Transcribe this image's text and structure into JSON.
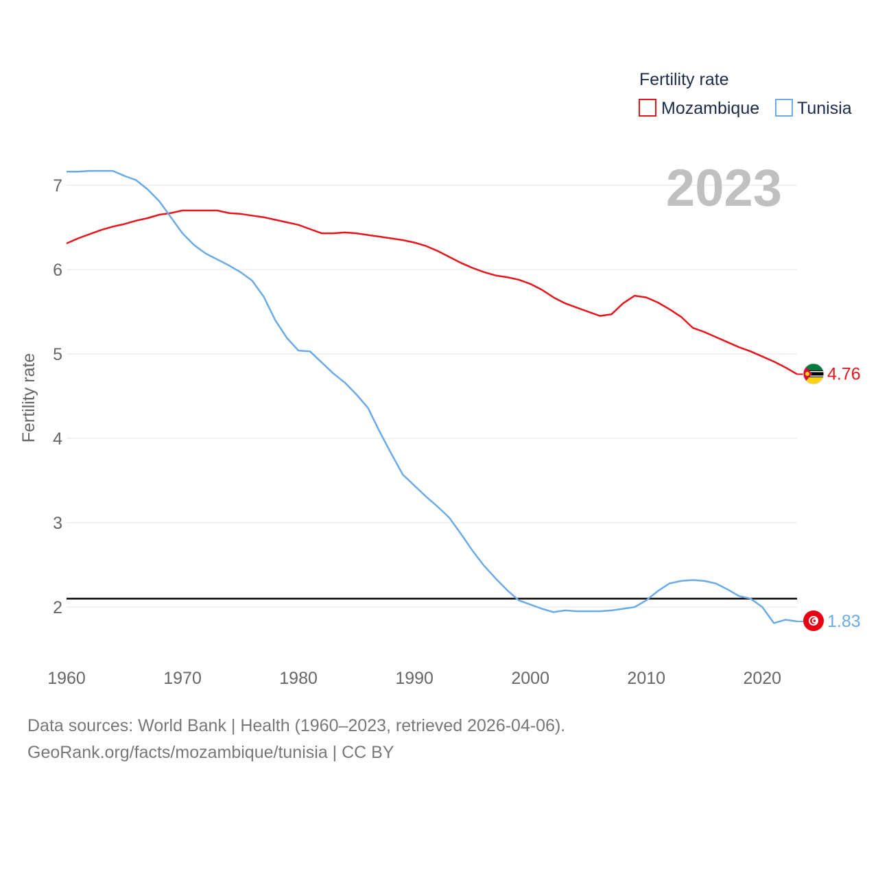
{
  "chart_data": {
    "type": "line",
    "legend": {
      "title": "Fertility rate",
      "placement": "top-right"
    },
    "year_label": "2023",
    "ylabel": "Fertility rate",
    "xlabel": "",
    "xlim": [
      1960,
      2023
    ],
    "ylim": [
      1.4,
      7.4
    ],
    "x_ticks": [
      1960,
      1970,
      1980,
      1990,
      2000,
      2010,
      2020
    ],
    "y_ticks": [
      2,
      3,
      4,
      5,
      6,
      7
    ],
    "reference_line": {
      "y": 2.1,
      "color": "#000000"
    },
    "x": [
      1960,
      1961,
      1962,
      1963,
      1964,
      1965,
      1966,
      1967,
      1968,
      1969,
      1970,
      1971,
      1972,
      1973,
      1974,
      1975,
      1976,
      1977,
      1978,
      1979,
      1980,
      1981,
      1982,
      1983,
      1984,
      1985,
      1986,
      1987,
      1988,
      1989,
      1990,
      1991,
      1992,
      1993,
      1994,
      1995,
      1996,
      1997,
      1998,
      1999,
      2000,
      2001,
      2002,
      2003,
      2004,
      2005,
      2006,
      2007,
      2008,
      2009,
      2010,
      2011,
      2012,
      2013,
      2014,
      2015,
      2016,
      2017,
      2018,
      2019,
      2020,
      2021,
      2022,
      2023
    ],
    "series": [
      {
        "name": "Mozambique",
        "color": "#e8141b",
        "end_label": "4.76",
        "values": [
          6.31,
          6.37,
          6.42,
          6.47,
          6.51,
          6.54,
          6.58,
          6.61,
          6.65,
          6.67,
          6.7,
          6.7,
          6.7,
          6.7,
          6.67,
          6.66,
          6.64,
          6.62,
          6.59,
          6.56,
          6.53,
          6.48,
          6.43,
          6.43,
          6.44,
          6.43,
          6.41,
          6.39,
          6.37,
          6.35,
          6.32,
          6.28,
          6.22,
          6.15,
          6.08,
          6.02,
          5.97,
          5.93,
          5.91,
          5.88,
          5.83,
          5.76,
          5.67,
          5.6,
          5.55,
          5.5,
          5.45,
          5.47,
          5.6,
          5.69,
          5.67,
          5.61,
          5.53,
          5.44,
          5.31,
          5.26,
          5.2,
          5.14,
          5.08,
          5.03,
          4.97,
          4.91,
          4.84,
          4.76
        ]
      },
      {
        "name": "Tunisia",
        "color": "#6aaae6",
        "end_label": "1.83",
        "values": [
          7.16,
          7.16,
          7.17,
          7.17,
          7.17,
          7.11,
          7.06,
          6.95,
          6.81,
          6.62,
          6.43,
          6.29,
          6.19,
          6.12,
          6.05,
          5.97,
          5.87,
          5.68,
          5.4,
          5.19,
          5.04,
          5.03,
          4.9,
          4.77,
          4.66,
          4.52,
          4.36,
          4.08,
          3.82,
          3.57,
          3.44,
          3.31,
          3.19,
          3.06,
          2.87,
          2.67,
          2.49,
          2.34,
          2.2,
          2.08,
          2.03,
          1.98,
          1.94,
          1.96,
          1.95,
          1.95,
          1.95,
          1.96,
          1.98,
          2.0,
          2.08,
          2.19,
          2.28,
          2.31,
          2.32,
          2.31,
          2.28,
          2.21,
          2.13,
          2.1,
          2.0,
          1.81,
          1.85,
          1.83
        ]
      }
    ]
  },
  "footer": {
    "line1": "Data sources: World Bank | Health (1960–2023, retrieved 2026-04-06).",
    "line2": "GeoRank.org/facts/mozambique/tunisia | CC BY"
  }
}
